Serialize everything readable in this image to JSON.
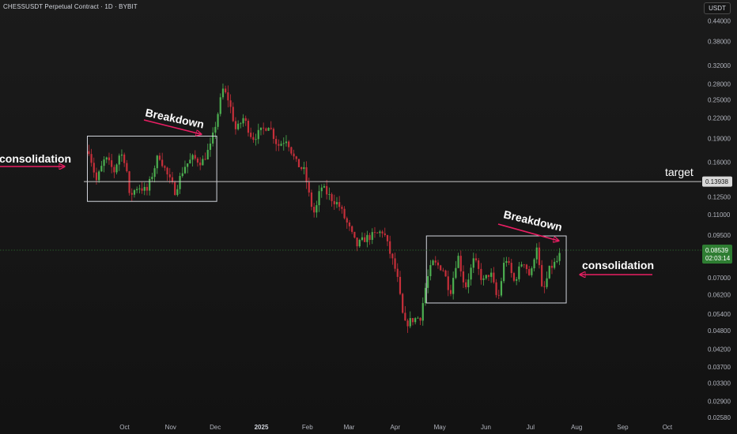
{
  "header": {
    "title": "CHESSUSDT Perpetual Contract · 1D · BYBIT"
  },
  "unit_label": "USDT",
  "colors": {
    "up": "#26a69a",
    "up_candle": "#4caf50",
    "down": "#c62f3a",
    "arrow": "#e91e63",
    "text": "#ffffff",
    "axis_text": "#b2b5be",
    "box": "#d1d4dc",
    "target_line": "#c8c8c8",
    "last_price_bg": "#2e7d32"
  },
  "chart_data": {
    "type": "candlestick",
    "y_scale": "log",
    "ylim": [
      0.0258,
      0.46
    ],
    "y_ticks": [
      "0.44000",
      "0.38000",
      "0.32000",
      "0.28000",
      "0.25000",
      "0.22000",
      "0.19000",
      "0.16000",
      "0.12500",
      "0.11000",
      "0.09500",
      "0.07000",
      "0.06200",
      "0.05400",
      "0.04800",
      "0.04200",
      "0.03700",
      "0.03300",
      "0.02900",
      "0.02580"
    ],
    "x_ticks": [
      "Oct",
      "Nov",
      "Dec",
      "2025",
      "Feb",
      "Mar",
      "Apr",
      "May",
      "Jun",
      "Jul",
      "Aug",
      "Sep",
      "Oct"
    ],
    "target": {
      "label": "target",
      "price": 0.13938,
      "price_label": "0.13938"
    },
    "last_price": {
      "price": 0.08539,
      "price_label": "0.08539",
      "countdown": "02:03:14"
    },
    "annotations": {
      "left_consolidation": "consolidation",
      "left_breakdown": "Breakdown",
      "right_breakdown": "Breakdown",
      "right_consolidation": "consolidation"
    },
    "path_points": [
      [
        "2024-09-07",
        0.175
      ],
      [
        "2024-09-12",
        0.14
      ],
      [
        "2024-09-18",
        0.165
      ],
      [
        "2024-09-24",
        0.15
      ],
      [
        "2024-09-28",
        0.172
      ],
      [
        "2024-10-02",
        0.16
      ],
      [
        "2024-10-04",
        0.125
      ],
      [
        "2024-10-10",
        0.135
      ],
      [
        "2024-10-16",
        0.13
      ],
      [
        "2024-10-24",
        0.17
      ],
      [
        "2024-10-30",
        0.145
      ],
      [
        "2024-11-04",
        0.13
      ],
      [
        "2024-11-10",
        0.155
      ],
      [
        "2024-11-16",
        0.165
      ],
      [
        "2024-11-22",
        0.16
      ],
      [
        "2024-11-28",
        0.18
      ],
      [
        "2024-12-03",
        0.23
      ],
      [
        "2024-12-06",
        0.27
      ],
      [
        "2024-12-10",
        0.25
      ],
      [
        "2024-12-15",
        0.2
      ],
      [
        "2024-12-20",
        0.22
      ],
      [
        "2024-12-26",
        0.19
      ],
      [
        "2025-01-01",
        0.2
      ],
      [
        "2025-01-06",
        0.21
      ],
      [
        "2025-01-12",
        0.18
      ],
      [
        "2025-01-18",
        0.19
      ],
      [
        "2025-01-24",
        0.16
      ],
      [
        "2025-01-30",
        0.15
      ],
      [
        "2025-02-03",
        0.12
      ],
      [
        "2025-02-06",
        0.11
      ],
      [
        "2025-02-10",
        0.135
      ],
      [
        "2025-02-16",
        0.125
      ],
      [
        "2025-02-22",
        0.118
      ],
      [
        "2025-03-01",
        0.1
      ],
      [
        "2025-03-06",
        0.088
      ],
      [
        "2025-03-12",
        0.093
      ],
      [
        "2025-03-18",
        0.095
      ],
      [
        "2025-03-24",
        0.098
      ],
      [
        "2025-03-28",
        0.085
      ],
      [
        "2025-04-02",
        0.072
      ],
      [
        "2025-04-07",
        0.05
      ],
      [
        "2025-04-13",
        0.052
      ],
      [
        "2025-04-18",
        0.053
      ],
      [
        "2025-04-22",
        0.068
      ],
      [
        "2025-04-26",
        0.078
      ],
      [
        "2025-05-03",
        0.075
      ],
      [
        "2025-05-08",
        0.063
      ],
      [
        "2025-05-13",
        0.083
      ],
      [
        "2025-05-18",
        0.065
      ],
      [
        "2025-05-24",
        0.08
      ],
      [
        "2025-05-30",
        0.068
      ],
      [
        "2025-06-04",
        0.073
      ],
      [
        "2025-06-09",
        0.059
      ],
      [
        "2025-06-14",
        0.082
      ],
      [
        "2025-06-20",
        0.068
      ],
      [
        "2025-06-26",
        0.08
      ],
      [
        "2025-07-01",
        0.07
      ],
      [
        "2025-07-05",
        0.09
      ],
      [
        "2025-07-09",
        0.062
      ],
      [
        "2025-07-14",
        0.075
      ],
      [
        "2025-07-19",
        0.079
      ],
      [
        "2025-07-22",
        0.08539
      ]
    ]
  }
}
